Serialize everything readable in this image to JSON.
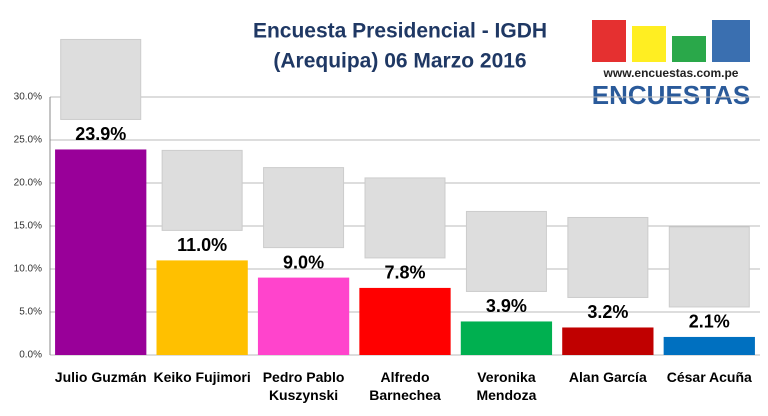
{
  "chart_data": {
    "type": "bar",
    "title": "Encuesta Presidencial - IGDH",
    "subtitle": "(Arequipa) 06 Marzo 2016",
    "categories": [
      "Julio Guzmán",
      "Keiko Fujimori",
      "Pedro Pablo Kuszynski",
      "Alfredo Barnechea",
      "Veronika Mendoza",
      "Alan García",
      "César Acuña"
    ],
    "values": [
      23.9,
      11.0,
      9.0,
      7.8,
      3.9,
      3.2,
      2.1
    ],
    "value_labels": [
      "23.9%",
      "11.0%",
      "9.0%",
      "7.8%",
      "3.9%",
      "3.2%",
      "2.1%"
    ],
    "colors": [
      "#990099",
      "#ffc000",
      "#ff44cc",
      "#ff0000",
      "#00b050",
      "#c00000",
      "#0070c0"
    ],
    "ylim": [
      0,
      30
    ],
    "yticks": [
      {
        "value": 0,
        "label": "0.0%"
      },
      {
        "value": 5,
        "label": "5.0%"
      },
      {
        "value": 10,
        "label": "10.0%"
      },
      {
        "value": 15,
        "label": "15.0%"
      },
      {
        "value": 20,
        "label": "20.0%"
      },
      {
        "value": 25,
        "label": "25.0%"
      },
      {
        "value": 30,
        "label": "30.0%"
      }
    ],
    "grid": true
  },
  "logo": {
    "url": "www.encuestas.com.pe",
    "name": "ENCUESTAS"
  }
}
